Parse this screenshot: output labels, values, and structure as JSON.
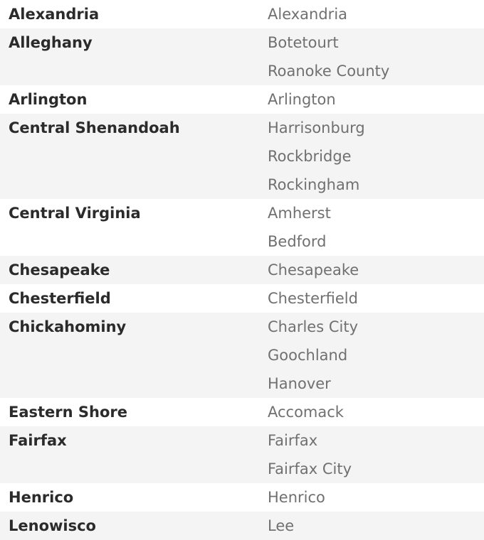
{
  "rows": [
    {
      "district": "Alexandria",
      "counties": [
        "Alexandria"
      ]
    },
    {
      "district": "Alleghany",
      "counties": [
        "Botetourt",
        "Roanoke County"
      ]
    },
    {
      "district": "Arlington",
      "counties": [
        "Arlington"
      ]
    },
    {
      "district": "Central Shenandoah",
      "counties": [
        "Harrisonburg",
        "Rockbridge",
        "Rockingham"
      ]
    },
    {
      "district": "Central Virginia",
      "counties": [
        "Amherst",
        "Bedford"
      ]
    },
    {
      "district": "Chesapeake",
      "counties": [
        "Chesapeake"
      ]
    },
    {
      "district": "Chesterfield",
      "counties": [
        "Chesterfield"
      ]
    },
    {
      "district": "Chickahominy",
      "counties": [
        "Charles City",
        "Goochland",
        "Hanover"
      ]
    },
    {
      "district": "Eastern Shore",
      "counties": [
        "Accomack"
      ]
    },
    {
      "district": "Fairfax",
      "counties": [
        "Fairfax",
        "Fairfax City"
      ]
    },
    {
      "district": "Henrico",
      "counties": [
        "Henrico"
      ]
    },
    {
      "district": "Lenowisco",
      "counties": [
        "Lee"
      ]
    }
  ]
}
